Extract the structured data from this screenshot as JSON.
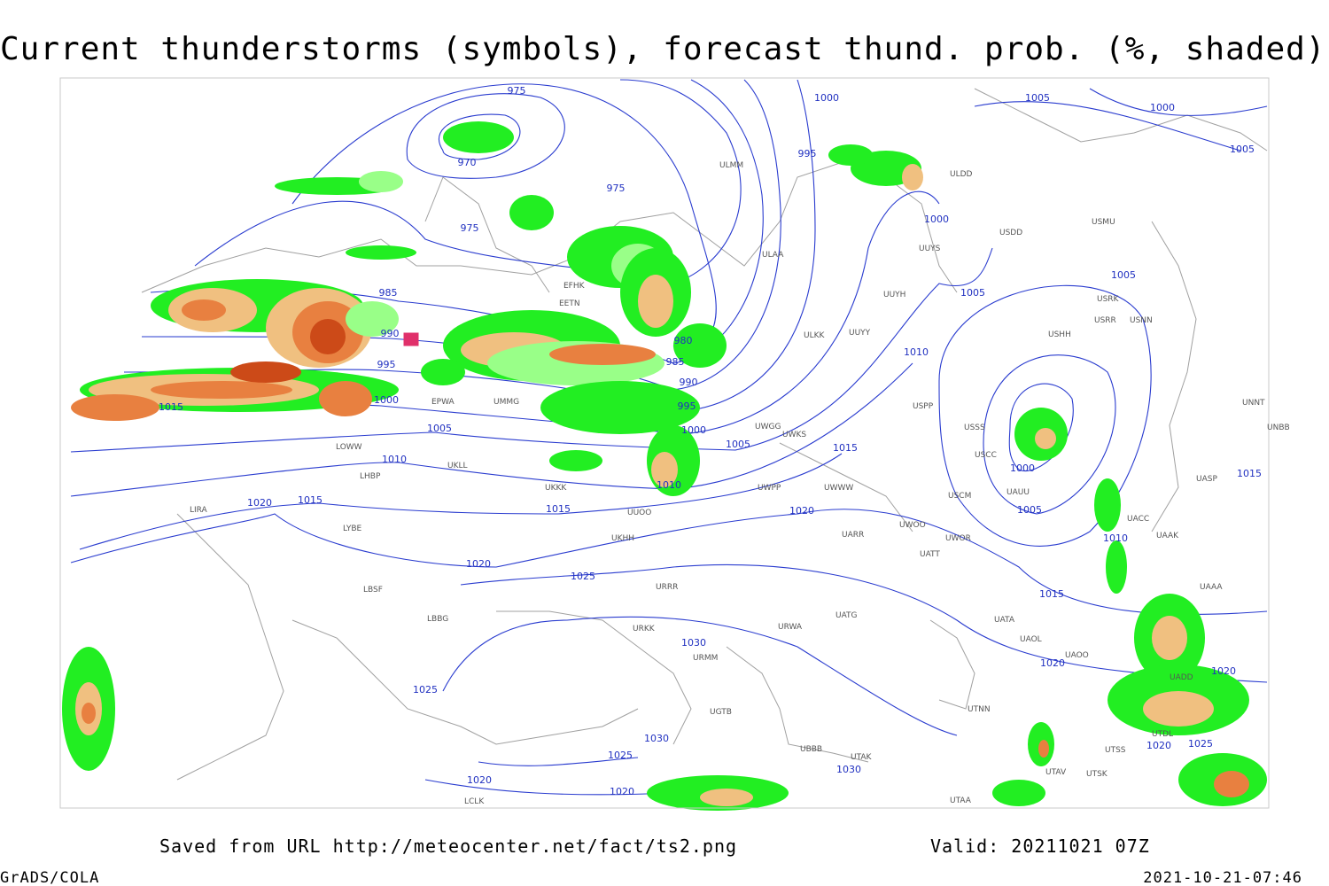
{
  "header": {
    "title": "Current thunderstorms (symbols), forecast thund. prob. (%, shaded)"
  },
  "footer": {
    "source": "Saved from URL http://meteocenter.net/fact/ts2.png",
    "valid": "Valid: 20211021 07Z",
    "software": "GrADS/COLA",
    "timestamp": "2021-10-21-07:46"
  },
  "isobar_labels": [
    "975",
    "970",
    "975",
    "975",
    "985",
    "990",
    "995",
    "1000",
    "1005",
    "1010",
    "1015",
    "1020",
    "1015",
    "980",
    "985",
    "990",
    "995",
    "1000",
    "1005",
    "1010",
    "1015",
    "1020",
    "1020",
    "1025",
    "1030",
    "1030",
    "1025",
    "1020",
    "1020",
    "1025",
    "1030",
    "1000",
    "995",
    "1000",
    "1005",
    "1010",
    "1015",
    "1005",
    "1000",
    "1005",
    "1005",
    "1000",
    "1005",
    "1010",
    "1015",
    "1015",
    "1020",
    "1020",
    "1025",
    "1020"
  ],
  "stations": [
    "ULMM",
    "ULDD",
    "USMU",
    "USDD",
    "UUYS",
    "ULAA",
    "EFHK",
    "EETN",
    "UUYH",
    "USRK",
    "USRR",
    "USNN",
    "USHH",
    "ULKK",
    "UUYY",
    "UWGG",
    "UWKS",
    "UWPP",
    "UWWW",
    "USPP",
    "USSS",
    "USCC",
    "USCM",
    "UAUU",
    "UACC",
    "UAAK",
    "UASP",
    "UNNT",
    "UNBB",
    "UWOO",
    "UWOR",
    "UATT",
    "UARR",
    "URWA",
    "UATG",
    "UATA",
    "UAOL",
    "UAOO",
    "UTNN",
    "URMM",
    "UGTB",
    "UBBB",
    "UTAK",
    "UTAA",
    "UKKK",
    "UKHH",
    "UUOO",
    "URRR",
    "URKK",
    "LIRA",
    "LYBE",
    "LBSF",
    "LBBG",
    "LHBP",
    "LOWW",
    "UKLL",
    "EPWA",
    "UMMG",
    "LCLK",
    "UTSS",
    "UTSK",
    "UTAV",
    "UTDL",
    "UADD",
    "UAAA"
  ]
}
